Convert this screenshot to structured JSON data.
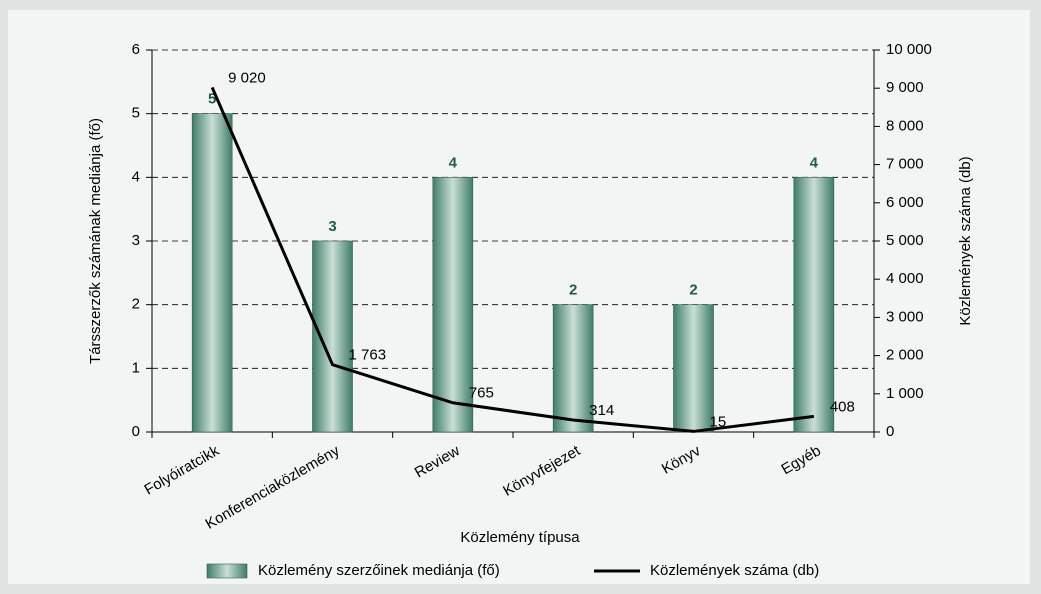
{
  "chart_data": {
    "type": "bar+line",
    "xlabel": "Közlemény típusa",
    "ylabel": "Társszerzők számának mediánja (fő)",
    "y2label": "Közlemények száma (db)",
    "categories": [
      "Folyóiratcikk",
      "Konferenciaközlemény",
      "Review",
      "Könyvfejezet",
      "Könyv",
      "Egyéb"
    ],
    "series": [
      {
        "name": "Közlemény szerzőinek mediánja (fő)",
        "type": "bar",
        "color": "#3f7d69",
        "values": [
          5,
          3,
          4,
          2,
          2,
          4
        ]
      },
      {
        "name": "Közlemények száma (db)",
        "type": "line",
        "color": "#000000",
        "axis": "y2",
        "values": [
          9020,
          1763,
          765,
          314,
          15,
          408
        ],
        "value_labels": [
          "9 020",
          "1 763",
          "765",
          "314",
          "15",
          "408"
        ]
      }
    ],
    "ylim": [
      0,
      6
    ],
    "yticks": [
      0,
      1,
      2,
      3,
      4,
      5,
      6
    ],
    "y2lim": [
      0,
      10000
    ],
    "y2ticks": [
      0,
      {
        "value": 1000,
        "label": "1 000"
      },
      {
        "value": 2000,
        "label": "2 000"
      },
      {
        "value": 3000,
        "label": "3 000"
      },
      {
        "value": 4000,
        "label": "4 000"
      },
      {
        "value": 5000,
        "label": "5 000"
      },
      {
        "value": 6000,
        "label": "6 000"
      },
      {
        "value": 7000,
        "label": "7 000"
      },
      {
        "value": 8000,
        "label": "8 000"
      },
      {
        "value": 9000,
        "label": "9 000"
      },
      {
        "value": 10000,
        "label": "10 000"
      }
    ],
    "grid": true,
    "legend": "bottom"
  }
}
